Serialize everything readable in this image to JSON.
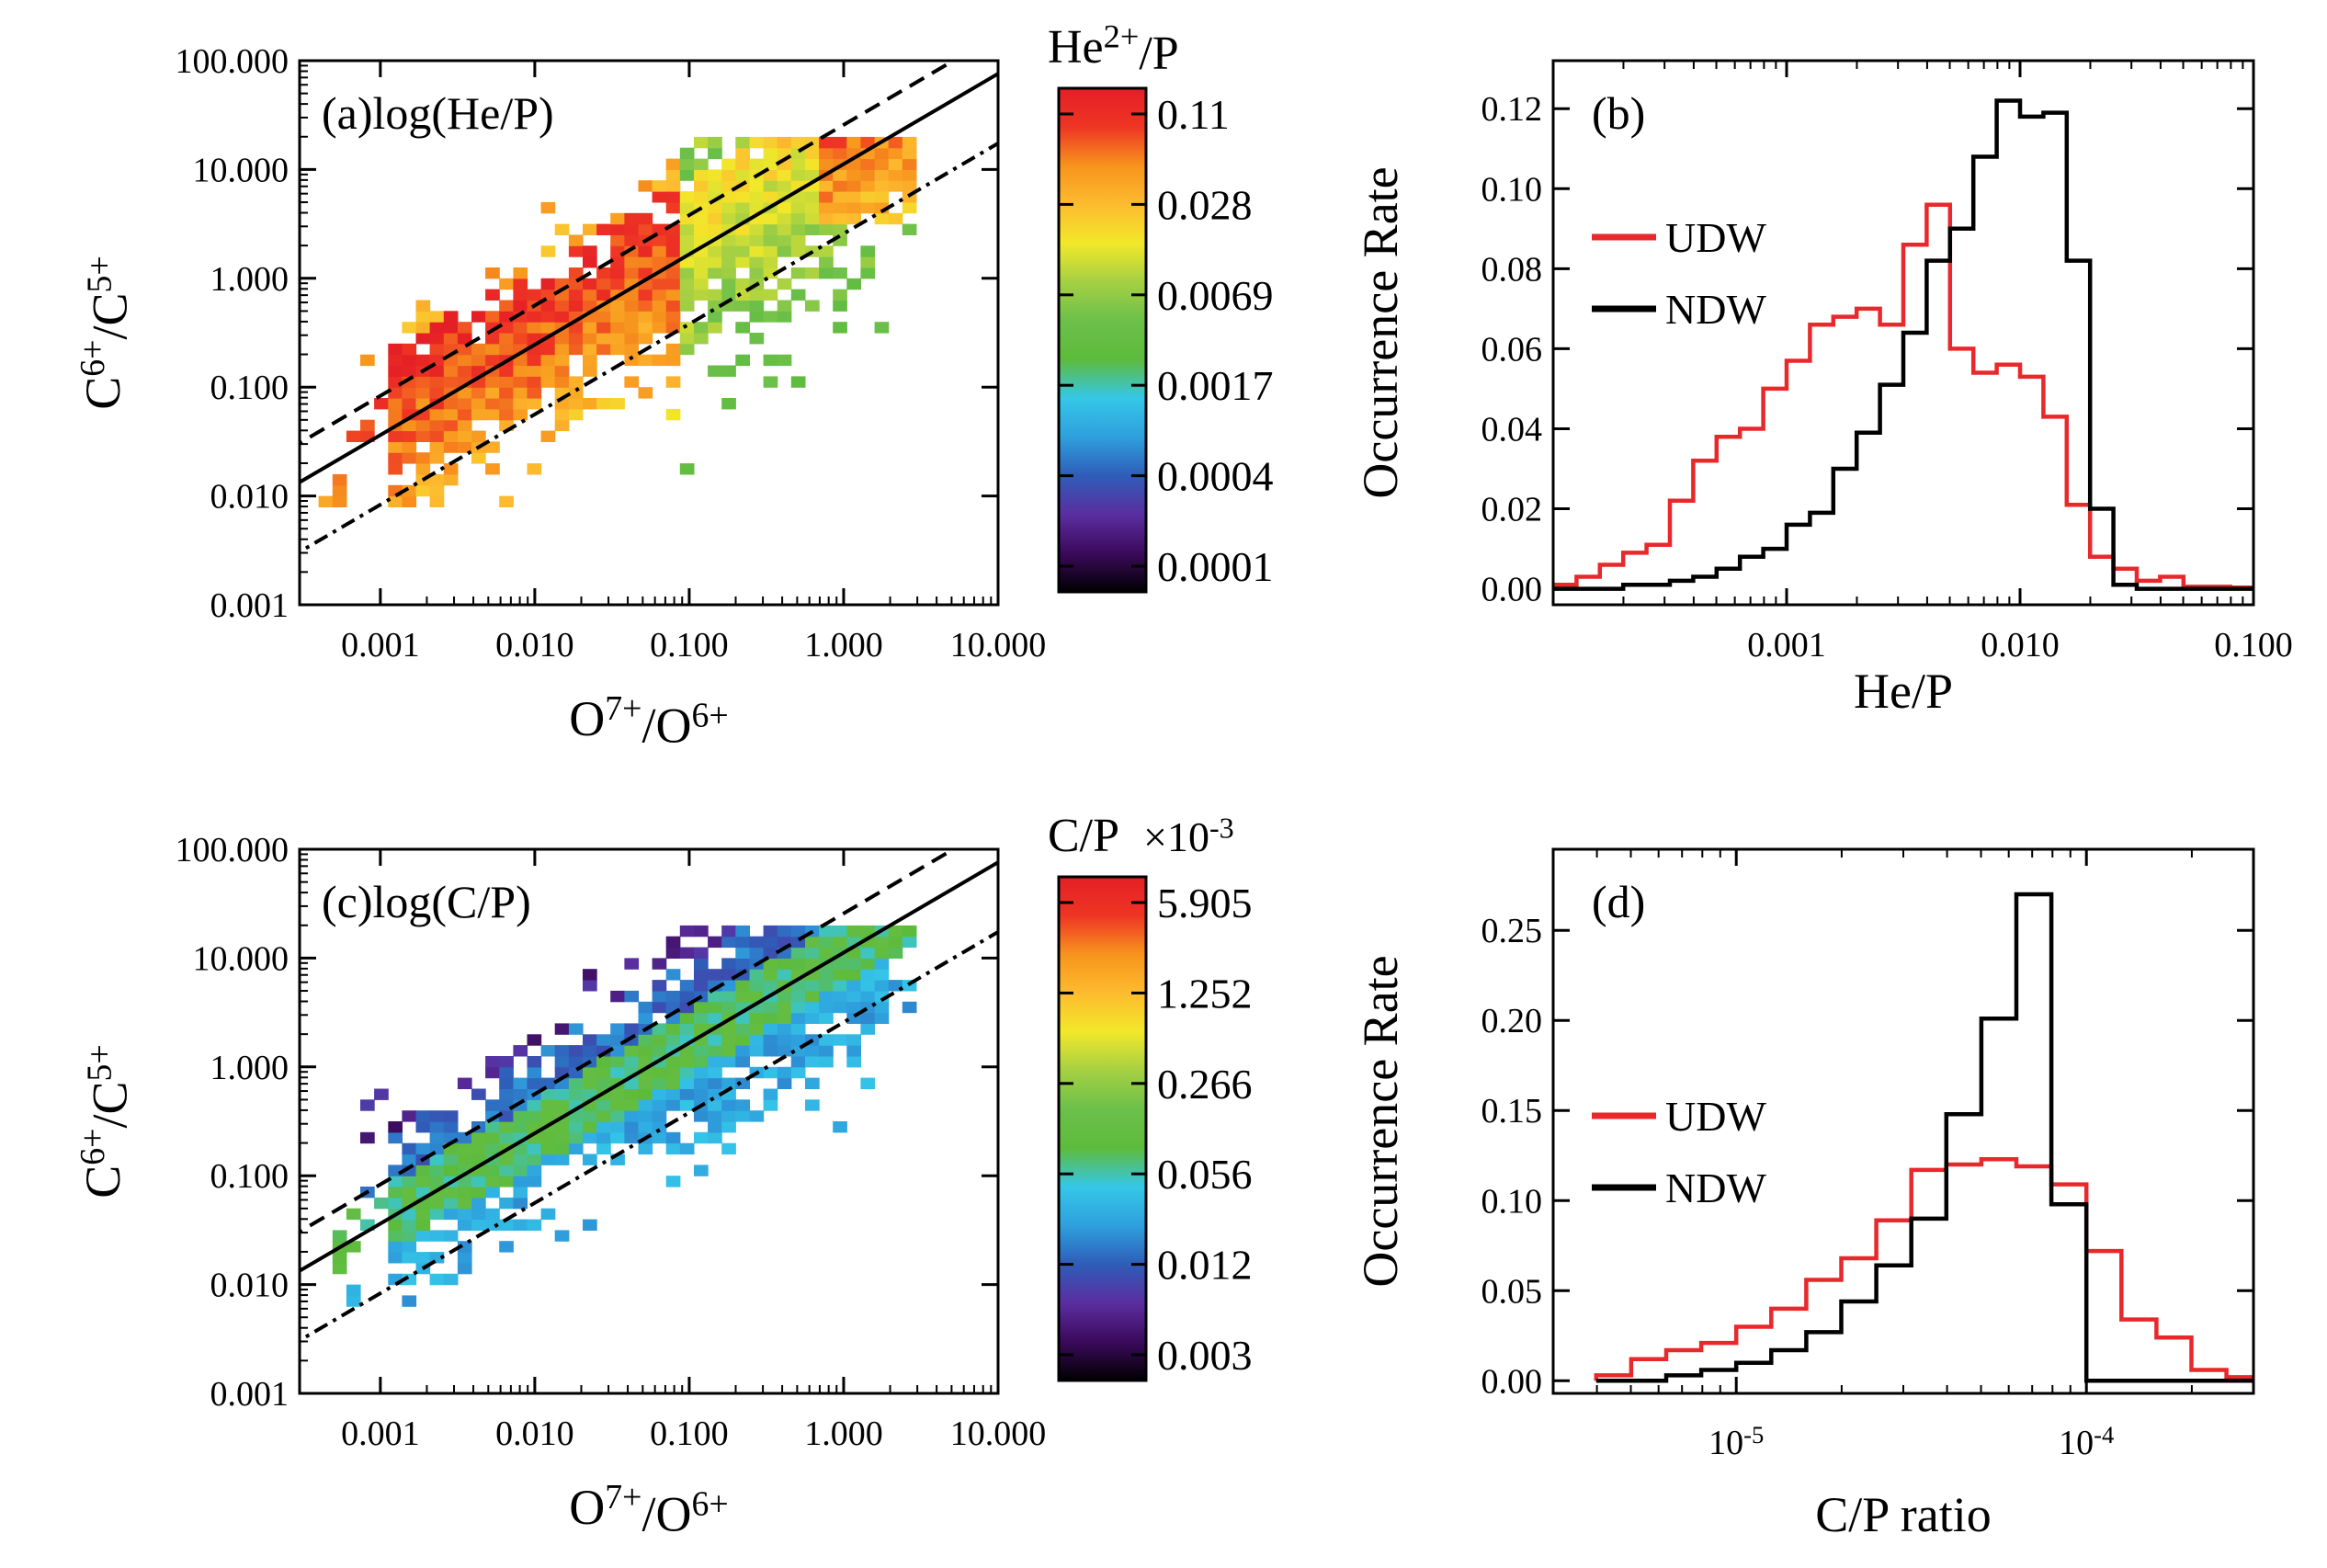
{
  "colors": {
    "udw": "#e8282b",
    "ndw": "#000000",
    "colormap": [
      "#000000",
      "#3b0a5c",
      "#5a2ea0",
      "#2f5db8",
      "#2ea0dd",
      "#35c7e8",
      "#5dbb3c",
      "#6cc04a",
      "#a5d043",
      "#f2e82a",
      "#fdbb2f",
      "#f7941d",
      "#ee3524",
      "#e41f26"
    ]
  },
  "chart_data": [
    {
      "id": "a",
      "type": "heatmap",
      "tag": "(a)log(He/P)",
      "xlabel": {
        "base": "O",
        "sup1": "7+",
        "mid": "/O",
        "sup2": "6+"
      },
      "ylabel": {
        "base": "C",
        "sup1": "6+",
        "mid": "/C",
        "sup2": "5+"
      },
      "xlim": [
        0.0003,
        10
      ],
      "ylim": [
        0.001,
        100
      ],
      "xticks": [
        "0.001",
        "0.010",
        "0.100",
        "1.000",
        "10.000"
      ],
      "yticks": [
        "0.001",
        "0.010",
        "0.100",
        "1.000",
        "10.000",
        "100.000"
      ],
      "lines": [
        {
          "style": "solid",
          "slope": 0.83,
          "intercept": 1.235
        },
        {
          "style": "dashed",
          "slope": 0.83,
          "intercept": 1.595
        },
        {
          "style": "dashdot",
          "slope": 0.83,
          "intercept": 0.595
        }
      ],
      "colorbar": {
        "title": "He",
        "title_sup": "2+",
        "title_tail": "/P",
        "exponent": "",
        "ticks": [
          "0.11",
          "0.028",
          "0.0069",
          "0.0017",
          "0.0004",
          "0.0001"
        ]
      },
      "variant": "he"
    },
    {
      "id": "b",
      "type": "histogram",
      "tag": "(b)",
      "xlabel": "He/P",
      "ylabel": "Occurrence Rate",
      "xscale": "log",
      "xlim": [
        0.0001,
        0.1
      ],
      "ylim": [
        -0.004,
        0.132
      ],
      "xticks": [
        {
          "v": 0.001,
          "t": "0.001"
        },
        {
          "v": 0.01,
          "t": "0.010"
        },
        {
          "v": 0.1,
          "t": "0.100"
        }
      ],
      "yticks": [
        "0.00",
        "0.02",
        "0.04",
        "0.06",
        "0.08",
        "0.10",
        "0.12"
      ],
      "ytick_values": [
        0,
        0.02,
        0.04,
        0.06,
        0.08,
        0.1,
        0.12
      ],
      "bin_edges_log": [
        -4.0,
        -3.9,
        -3.8,
        -3.7,
        -3.6,
        -3.5,
        -3.4,
        -3.3,
        -3.2,
        -3.1,
        -3.0,
        -2.9,
        -2.8,
        -2.7,
        -2.6,
        -2.5,
        -2.4,
        -2.3,
        -2.2,
        -2.1,
        -2.0,
        -1.9,
        -1.8,
        -1.7,
        -1.6,
        -1.5,
        -1.4,
        -1.3,
        -1.2,
        -1.1,
        -1.0
      ],
      "series": [
        {
          "name": "UDW",
          "values": [
            0.001,
            0.003,
            0.006,
            0.009,
            0.011,
            0.022,
            0.032,
            0.038,
            0.04,
            0.05,
            0.057,
            0.066,
            0.068,
            0.07,
            0.066,
            0.086,
            0.096,
            0.06,
            0.054,
            0.056,
            0.053,
            0.043,
            0.021,
            0.008,
            0.005,
            0.002,
            0.003,
            0.0005,
            0.0005,
            0.0003
          ]
        },
        {
          "name": "NDW",
          "values": [
            0.0,
            0.0,
            0.0,
            0.001,
            0.001,
            0.002,
            0.003,
            0.005,
            0.008,
            0.01,
            0.016,
            0.019,
            0.03,
            0.039,
            0.051,
            0.064,
            0.082,
            0.09,
            0.108,
            0.122,
            0.118,
            0.119,
            0.082,
            0.02,
            0.001,
            0.0,
            0.0,
            0.0,
            0.0,
            0.0
          ]
        }
      ]
    },
    {
      "id": "c",
      "type": "heatmap",
      "tag": "(c)log(C/P)",
      "xlabel": {
        "base": "O",
        "sup1": "7+",
        "mid": "/O",
        "sup2": "6+"
      },
      "ylabel": {
        "base": "C",
        "sup1": "6+",
        "mid": "/C",
        "sup2": "5+"
      },
      "xlim": [
        0.0003,
        10
      ],
      "ylim": [
        0.001,
        100
      ],
      "xticks": [
        "0.001",
        "0.010",
        "0.100",
        "1.000",
        "10.000"
      ],
      "yticks": [
        "0.001",
        "0.010",
        "0.100",
        "1.000",
        "10.000",
        "100.000"
      ],
      "lines": [
        {
          "style": "solid",
          "slope": 0.83,
          "intercept": 1.235
        },
        {
          "style": "dashed",
          "slope": 0.83,
          "intercept": 1.595
        },
        {
          "style": "dashdot",
          "slope": 0.83,
          "intercept": 0.595
        }
      ],
      "colorbar": {
        "title": "C/P",
        "title_sup": "",
        "title_tail": "",
        "exponent": "×10",
        "exponent_sup": "-3",
        "ticks": [
          "5.905",
          "1.252",
          "0.266",
          "0.056",
          "0.012",
          "0.003"
        ]
      },
      "variant": "c"
    },
    {
      "id": "d",
      "type": "histogram",
      "tag": "(d)",
      "xlabel": "C/P ratio",
      "ylabel": "Occurrence Rate",
      "xscale": "log",
      "xlim": [
        3e-06,
        0.0003
      ],
      "ylim": [
        -0.007,
        0.295
      ],
      "xticks": [
        {
          "v": 1e-05,
          "t": "10",
          "sup": "-5"
        },
        {
          "v": 0.0001,
          "t": "10",
          "sup": "-4"
        }
      ],
      "yticks": [
        "0.00",
        "0.05",
        "0.10",
        "0.15",
        "0.20",
        "0.25"
      ],
      "ytick_values": [
        0,
        0.05,
        0.1,
        0.15,
        0.2,
        0.25
      ],
      "bin_edges_log": [
        -5.4,
        -5.3,
        -5.2,
        -5.1,
        -5.0,
        -4.9,
        -4.8,
        -4.7,
        -4.6,
        -4.5,
        -4.4,
        -4.3,
        -4.2,
        -4.1,
        -4.0,
        -3.9,
        -3.8,
        -3.7,
        -3.6,
        -3.5
      ],
      "series": [
        {
          "name": "UDW",
          "values": [
            0.003,
            0.012,
            0.017,
            0.021,
            0.03,
            0.04,
            0.056,
            0.068,
            0.089,
            0.117,
            0.12,
            0.123,
            0.119,
            0.109,
            0.072,
            0.034,
            0.024,
            0.006,
            0.002
          ]
        },
        {
          "name": "NDW",
          "values": [
            0.0,
            0.0,
            0.003,
            0.006,
            0.01,
            0.017,
            0.027,
            0.044,
            0.064,
            0.09,
            0.148,
            0.201,
            0.27,
            0.098,
            0.0,
            0.0,
            0.0,
            0.0,
            0.0
          ]
        }
      ]
    }
  ]
}
